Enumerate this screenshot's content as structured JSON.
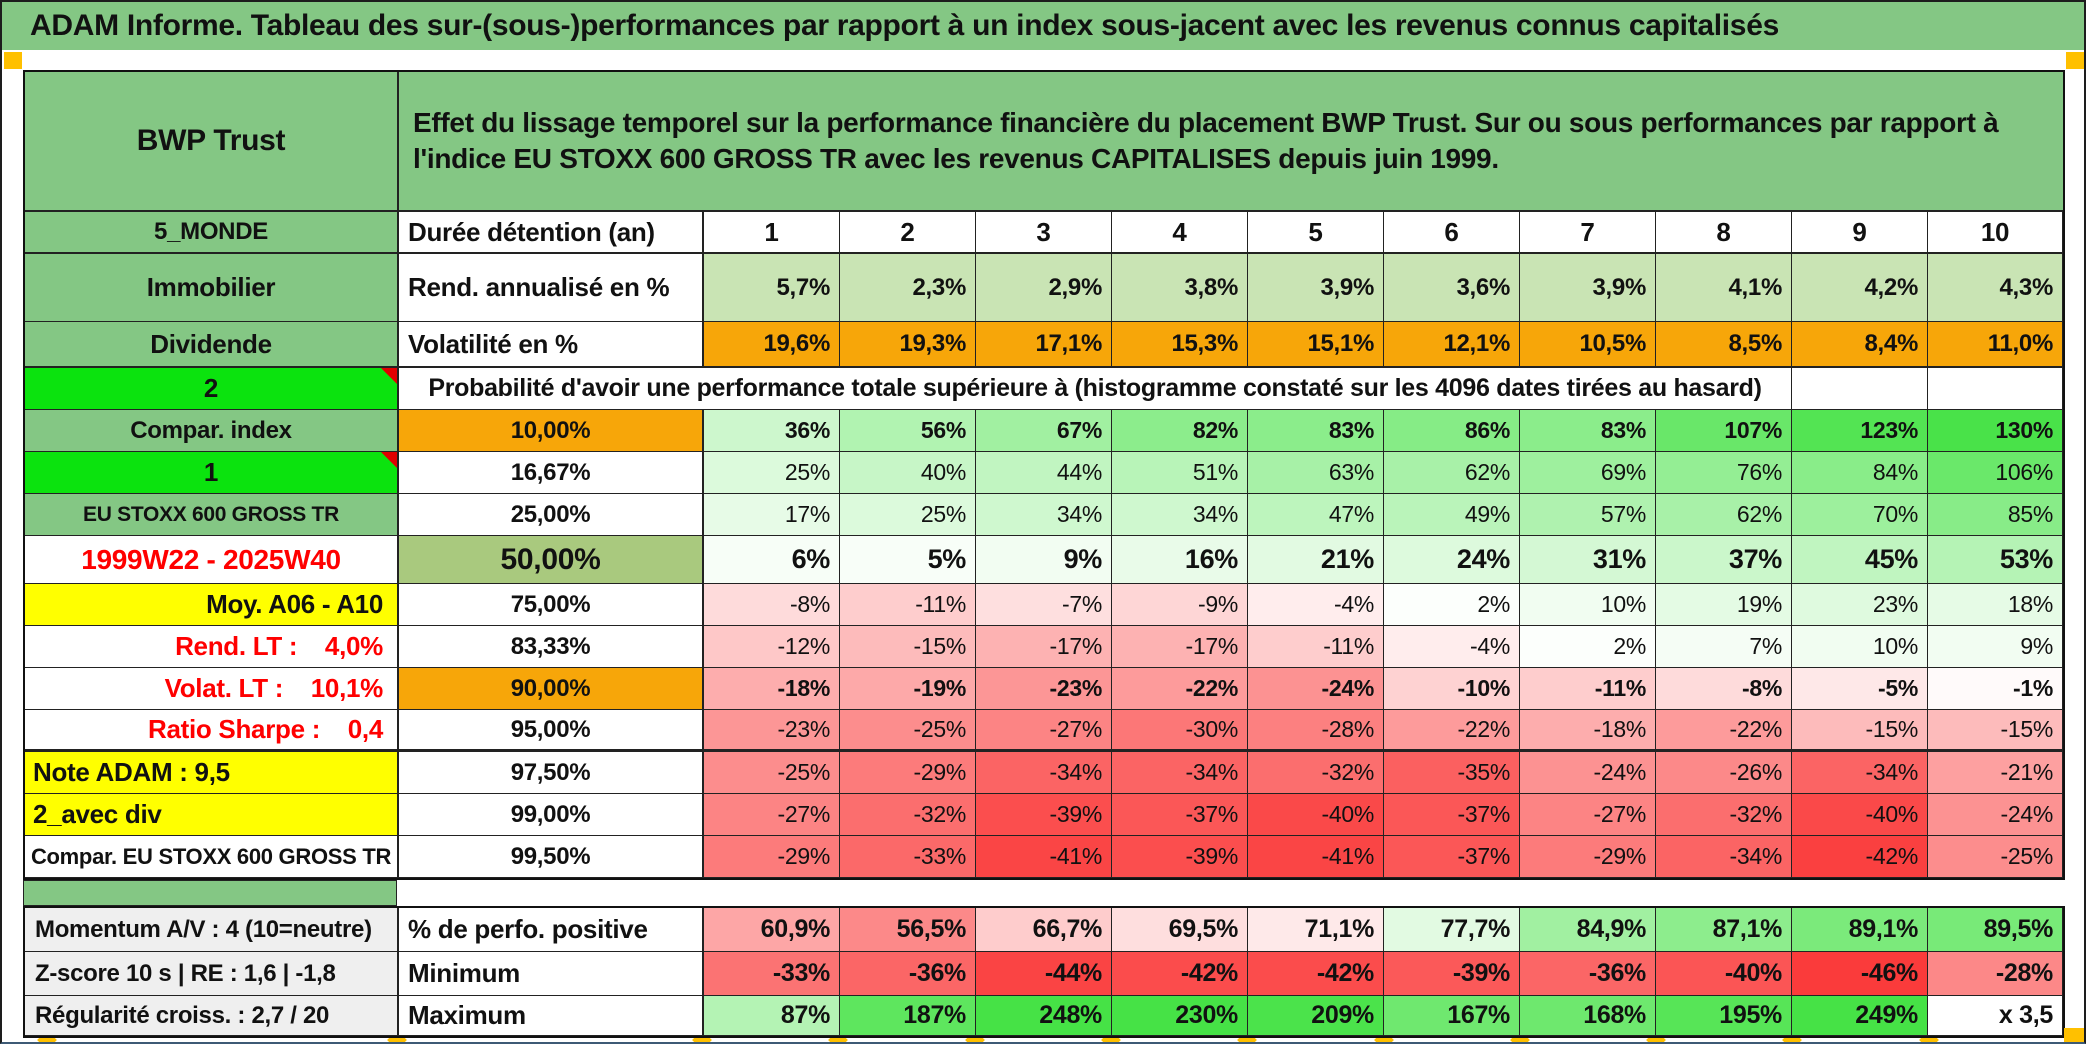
{
  "palette": {
    "header_green": "#84C784",
    "bright_green": "#0BE30E",
    "olive_green": "#A9C97E",
    "light_green_band": "#C9E4B4",
    "orange": "#F7A609",
    "gold": "#FFC000",
    "yellow": "#FFFF00",
    "red_text": "#FF0000",
    "gray_label": "#EFEFEF"
  },
  "title_bar": {
    "text": "ADAM Informe. Tableau des sur-(sous-)performances par rapport à un index sous-jacent avec les revenus connus capitalisés"
  },
  "header": {
    "fund_name": "BWP Trust",
    "description": "Effet du lissage temporel sur la performance financière du placement BWP Trust. Sur ou sous performances par rapport à l'indice EU STOXX 600 GROSS TR avec les revenus CAPITALISES depuis juin 1999."
  },
  "table": {
    "duration": {
      "label": "5_MONDE",
      "metric": "Durée détention (an)",
      "years": [
        "1",
        "2",
        "3",
        "4",
        "5",
        "6",
        "7",
        "8",
        "9",
        "10"
      ]
    },
    "annualized": {
      "label": "Immobilier",
      "metric": "Rend. annualisé en %",
      "labels": [
        "5,7%",
        "2,3%",
        "2,9%",
        "3,8%",
        "3,9%",
        "3,6%",
        "3,9%",
        "4,1%",
        "4,2%",
        "4,3%"
      ]
    },
    "volatility": {
      "label": "Dividende",
      "metric": "Volatilité en %",
      "labels": [
        "19,6%",
        "19,3%",
        "17,1%",
        "15,3%",
        "15,1%",
        "12,1%",
        "10,5%",
        "8,5%",
        "8,4%",
        "11,0%"
      ]
    },
    "probability_header": {
      "label": "2",
      "text": "Probabilité d'avoir une performance totale supérieure à (histogramme constaté sur les 4096 dates tirées au hasard)"
    },
    "probability_rows": [
      {
        "label": "Compar. index",
        "label_style": "green",
        "comment_marker": false,
        "quantile": "10,00%",
        "quantile_style": "orange",
        "strong": true,
        "large": false,
        "values": [
          36,
          56,
          67,
          82,
          83,
          86,
          83,
          107,
          123,
          130
        ]
      },
      {
        "label": "1",
        "label_style": "bright",
        "comment_marker": true,
        "quantile": "16,67%",
        "quantile_style": "white",
        "strong": false,
        "large": false,
        "values": [
          25,
          40,
          44,
          51,
          63,
          62,
          69,
          76,
          84,
          106
        ]
      },
      {
        "label": "EU STOXX 600 GROSS TR",
        "label_style": "green-small",
        "comment_marker": false,
        "quantile": "25,00%",
        "quantile_style": "white",
        "strong": false,
        "large": false,
        "values": [
          17,
          25,
          34,
          34,
          47,
          49,
          57,
          62,
          70,
          85
        ]
      },
      {
        "label": "1999W22 - 2025W40",
        "label_style": "period",
        "comment_marker": false,
        "quantile": "50,00%",
        "quantile_style": "olive-large",
        "strong": true,
        "large": true,
        "values": [
          6,
          5,
          9,
          16,
          21,
          24,
          31,
          37,
          45,
          53
        ]
      },
      {
        "label": "Moy. A06 - A10",
        "label_style": "yellow-right",
        "comment_marker": false,
        "quantile": "75,00%",
        "quantile_style": "white",
        "strong": false,
        "large": false,
        "values": [
          -8,
          -11,
          -7,
          -9,
          -4,
          2,
          10,
          19,
          23,
          18
        ]
      },
      {
        "label": "Rend. LT :    4,0%",
        "label_style": "red-right",
        "comment_marker": false,
        "quantile": "83,33%",
        "quantile_style": "white",
        "strong": false,
        "large": false,
        "values": [
          -12,
          -15,
          -17,
          -17,
          -11,
          -4,
          2,
          7,
          10,
          9
        ]
      },
      {
        "label": "Volat. LT :    10,1%",
        "label_style": "red-right",
        "comment_marker": false,
        "quantile": "90,00%",
        "quantile_style": "orange",
        "strong": true,
        "large": false,
        "values": [
          -18,
          -19,
          -23,
          -22,
          -24,
          -10,
          -11,
          -8,
          -5,
          -1
        ]
      },
      {
        "label": "Ratio Sharpe :    0,4",
        "label_style": "red-right",
        "comment_marker": false,
        "quantile": "95,00%",
        "quantile_style": "white",
        "strong": false,
        "large": false,
        "values": [
          -23,
          -25,
          -27,
          -30,
          -28,
          -22,
          -18,
          -22,
          -15,
          -15
        ]
      },
      {
        "label": "Note ADAM : 9,5",
        "label_style": "yellow-left",
        "comment_marker": false,
        "quantile": "97,50%",
        "quantile_style": "white",
        "strong": false,
        "large": false,
        "values": [
          -25,
          -29,
          -34,
          -34,
          -32,
          -35,
          -24,
          -26,
          -34,
          -21
        ]
      },
      {
        "label": "2_avec div",
        "label_style": "yellow-left",
        "comment_marker": false,
        "quantile": "99,00%",
        "quantile_style": "white",
        "strong": false,
        "large": false,
        "values": [
          -27,
          -32,
          -39,
          -37,
          -40,
          -37,
          -27,
          -32,
          -40,
          -24
        ]
      },
      {
        "label": "Compar. EU STOXX 600 GROSS TR",
        "label_style": "white-center",
        "comment_marker": false,
        "quantile": "99,50%",
        "quantile_style": "white",
        "strong": false,
        "large": false,
        "values": [
          -29,
          -33,
          -41,
          -39,
          -41,
          -37,
          -29,
          -34,
          -42,
          -25
        ]
      }
    ],
    "footer_rows": [
      {
        "label": "Momentum A/V : 4 (10=neutre)",
        "metric": "% de perfo. positive",
        "scale": "perfo",
        "labels": [
          "60,9%",
          "56,5%",
          "66,7%",
          "69,5%",
          "71,1%",
          "77,7%",
          "84,9%",
          "87,1%",
          "89,1%",
          "89,5%"
        ],
        "values": [
          60.9,
          56.5,
          66.7,
          69.5,
          71.1,
          77.7,
          84.9,
          87.1,
          89.1,
          89.5
        ]
      },
      {
        "label": "Z-score 10 s | RE : 1,6 | -1,8",
        "metric": "Minimum",
        "scale": "minimum",
        "labels": [
          "-33%",
          "-36%",
          "-44%",
          "-42%",
          "-42%",
          "-39%",
          "-36%",
          "-40%",
          "-46%",
          "-28%"
        ],
        "values": [
          -33,
          -36,
          -44,
          -42,
          -42,
          -39,
          -36,
          -40,
          -46,
          -28
        ]
      },
      {
        "label": "Régularité croiss. : 2,7 / 20",
        "metric": "Maximum",
        "scale": "maximum",
        "labels": [
          "87%",
          "187%",
          "248%",
          "230%",
          "209%",
          "167%",
          "168%",
          "195%",
          "249%",
          "x 3,5"
        ],
        "values": [
          87,
          187,
          248,
          230,
          209,
          167,
          168,
          195,
          249,
          null
        ]
      }
    ]
  }
}
